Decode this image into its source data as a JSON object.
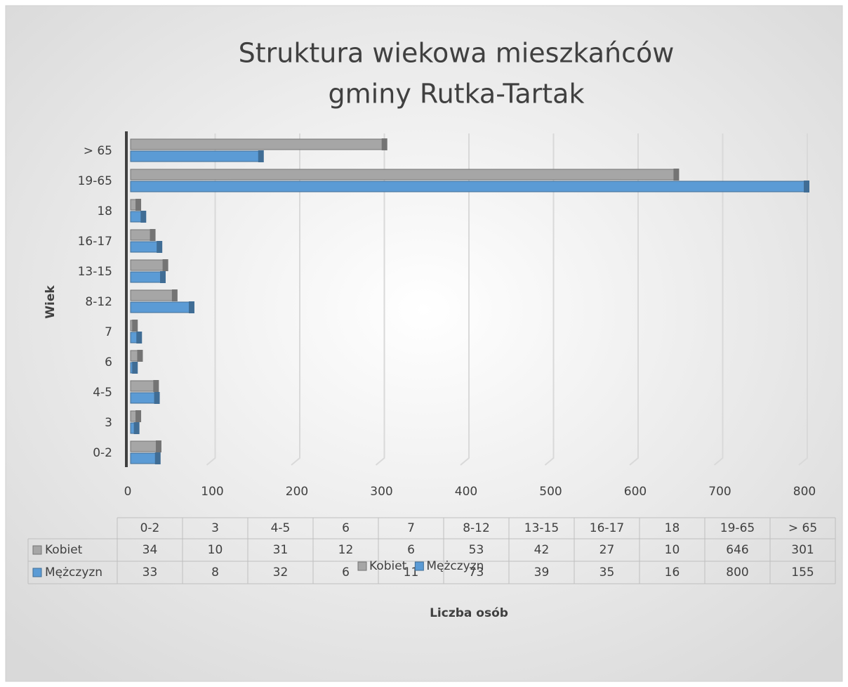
{
  "chart_data": {
    "type": "bar",
    "orientation": "horizontal",
    "title": [
      "Struktura wiekowa mieszkańców",
      "gminy Rutka-Tartak"
    ],
    "y_label": "Wiek",
    "x_label": "Liczba osób",
    "categories": [
      "0-2",
      "3",
      "4-5",
      "6",
      "7",
      "8-12",
      "13-15",
      "16-17",
      "18",
      "19-65",
      "> 65"
    ],
    "series": [
      {
        "name": "Kobiet",
        "color": "#a6a6a6",
        "values": [
          34,
          10,
          31,
          12,
          6,
          53,
          42,
          27,
          10,
          646,
          301
        ]
      },
      {
        "name": "Mężczyzn",
        "color": "#5b9bd5",
        "values": [
          33,
          8,
          32,
          6,
          11,
          73,
          39,
          35,
          16,
          800,
          155
        ]
      }
    ],
    "xlim": [
      0,
      800
    ],
    "xticks": [
      0,
      100,
      200,
      300,
      400,
      500,
      600,
      700,
      800
    ],
    "grid": true,
    "legend": "bottom",
    "data_table": true
  }
}
